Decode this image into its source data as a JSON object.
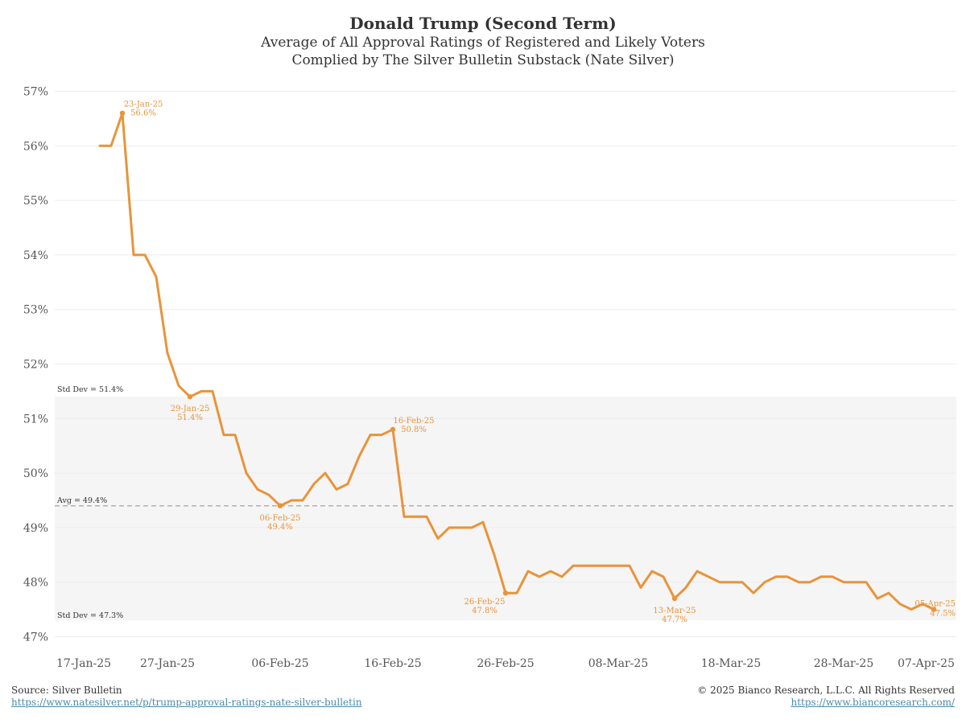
{
  "colors": {
    "line": "#e8943a",
    "band": "#f5f5f5",
    "avg_line": "#b0b0b0",
    "grid": "#ececec",
    "label": "#e8943a",
    "link": "#4a8aa8"
  },
  "chart_data": {
    "type": "line",
    "title": "Donald Trump (Second Term)",
    "subtitle_1": "Average of All Approval Ratings of Registered and Likely Voters",
    "subtitle_2": "Complied by The Silver Bulletin Substack (Nate Silver)",
    "ylim": [
      46.8,
      57.2
    ],
    "y_ticks": [
      47,
      48,
      49,
      50,
      51,
      52,
      53,
      54,
      55,
      56,
      57
    ],
    "y_tick_labels": [
      "47%",
      "48%",
      "49%",
      "50%",
      "51%",
      "52%",
      "53%",
      "54%",
      "55%",
      "56%",
      "57%"
    ],
    "x_range": [
      "2025-01-17",
      "2025-04-07"
    ],
    "x_ticks": [
      "2025-01-17",
      "2025-01-27",
      "2025-02-06",
      "2025-02-16",
      "2025-02-26",
      "2025-03-08",
      "2025-03-18",
      "2025-03-28",
      "2025-04-07"
    ],
    "x_tick_labels": [
      "17-Jan-25",
      "27-Jan-25",
      "06-Feb-25",
      "16-Feb-25",
      "26-Feb-25",
      "08-Mar-25",
      "18-Mar-25",
      "28-Mar-25",
      "07-Apr-25"
    ],
    "grid": true,
    "bands": {
      "std_dev_upper": 51.4,
      "std_dev_lower": 47.3,
      "avg": 49.4,
      "upper_label": "Std Dev = 51.4%",
      "lower_label": "Std Dev = 47.3%",
      "avg_label": "Avg = 49.4%"
    },
    "series": [
      {
        "x": [
          "2025-01-21",
          "2025-01-22",
          "2025-01-23",
          "2025-01-24",
          "2025-01-25",
          "2025-01-26",
          "2025-01-27",
          "2025-01-28",
          "2025-01-29",
          "2025-01-30",
          "2025-01-31",
          "2025-02-01",
          "2025-02-02",
          "2025-02-03",
          "2025-02-04",
          "2025-02-05",
          "2025-02-06",
          "2025-02-07",
          "2025-02-08",
          "2025-02-09",
          "2025-02-10",
          "2025-02-11",
          "2025-02-12",
          "2025-02-13",
          "2025-02-14",
          "2025-02-15",
          "2025-02-16",
          "2025-02-17",
          "2025-02-18",
          "2025-02-19",
          "2025-02-20",
          "2025-02-21",
          "2025-02-22",
          "2025-02-23",
          "2025-02-24",
          "2025-02-25",
          "2025-02-26",
          "2025-02-27",
          "2025-02-28",
          "2025-03-01",
          "2025-03-02",
          "2025-03-03",
          "2025-03-04",
          "2025-03-05",
          "2025-03-06",
          "2025-03-07",
          "2025-03-08",
          "2025-03-09",
          "2025-03-10",
          "2025-03-11",
          "2025-03-12",
          "2025-03-13",
          "2025-03-14",
          "2025-03-15",
          "2025-03-16",
          "2025-03-17",
          "2025-03-18",
          "2025-03-19",
          "2025-03-20",
          "2025-03-21",
          "2025-03-22",
          "2025-03-23",
          "2025-03-24",
          "2025-03-25",
          "2025-03-26",
          "2025-03-27",
          "2025-03-28",
          "2025-03-29",
          "2025-03-30",
          "2025-03-31",
          "2025-04-01",
          "2025-04-02",
          "2025-04-03",
          "2025-04-04",
          "2025-04-05"
        ],
        "values": [
          56.0,
          56.0,
          56.6,
          54.0,
          54.0,
          53.6,
          52.2,
          51.6,
          51.4,
          51.5,
          51.5,
          50.7,
          50.7,
          50.0,
          49.7,
          49.6,
          49.4,
          49.5,
          49.5,
          49.8,
          50.0,
          49.7,
          49.8,
          50.3,
          50.7,
          50.7,
          50.8,
          49.2,
          49.2,
          49.2,
          48.8,
          49.0,
          49.0,
          49.0,
          49.1,
          48.5,
          47.8,
          47.8,
          48.2,
          48.1,
          48.2,
          48.1,
          48.3,
          48.3,
          48.3,
          48.3,
          48.3,
          48.3,
          47.9,
          48.2,
          48.1,
          47.7,
          47.9,
          48.2,
          48.1,
          48.0,
          48.0,
          48.0,
          47.8,
          48.0,
          48.1,
          48.1,
          48.0,
          48.0,
          48.1,
          48.1,
          48.0,
          48.0,
          48.0,
          47.7,
          47.8,
          47.6,
          47.5,
          47.6,
          47.5
        ]
      }
    ],
    "annotations": [
      {
        "x": "2025-01-23",
        "y": 56.6,
        "date_label": "23-Jan-25",
        "value_label": "56.6%",
        "pos": "above-right"
      },
      {
        "x": "2025-01-29",
        "y": 51.4,
        "date_label": "29-Jan-25",
        "value_label": "51.4%",
        "pos": "below"
      },
      {
        "x": "2025-02-06",
        "y": 49.4,
        "date_label": "06-Feb-25",
        "value_label": "49.4%",
        "pos": "below"
      },
      {
        "x": "2025-02-16",
        "y": 50.8,
        "date_label": "16-Feb-25",
        "value_label": "50.8%",
        "pos": "above-right"
      },
      {
        "x": "2025-02-26",
        "y": 47.8,
        "date_label": "26-Feb-25",
        "value_label": "47.8%",
        "pos": "below-left"
      },
      {
        "x": "2025-03-13",
        "y": 47.7,
        "date_label": "13-Mar-25",
        "value_label": "47.7%",
        "pos": "below"
      },
      {
        "x": "2025-04-05",
        "y": 47.5,
        "date_label": "05-Apr-25",
        "value_label": "47.5%",
        "pos": "right"
      }
    ]
  },
  "footer": {
    "source_label": "Source: Silver Bulletin",
    "source_url": "https://www.natesilver.net/p/trump-approval-ratings-nate-silver-bulletin",
    "copyright": "© 2025 Bianco Research, L.L.C. All Rights Reserved",
    "company_url": "https://www.biancoresearch.com/"
  }
}
